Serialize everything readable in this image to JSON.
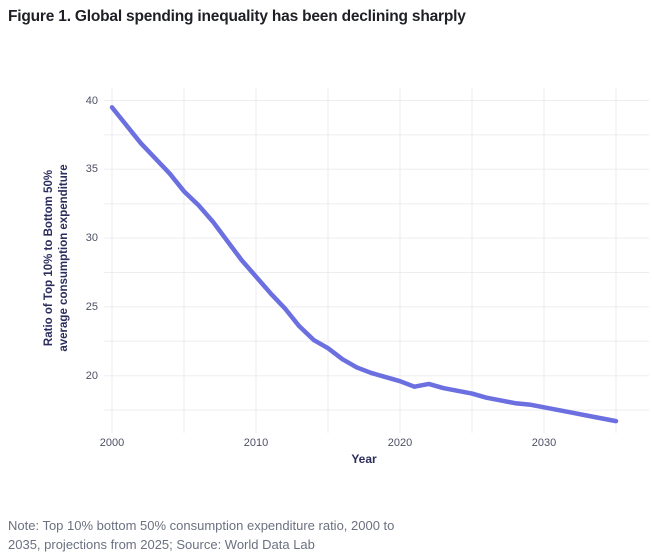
{
  "title": "Figure 1. Global spending inequality has been declining sharply",
  "note": {
    "lines": [
      "Note: Top 10% bottom 50% consumption expenditure ratio, 2000 to",
      "2035, projections from 2025; Source: World Data Lab"
    ]
  },
  "colors": {
    "line": "#6b6fe0",
    "grid": "#ededf1",
    "axis_text": "#4d5064",
    "axis_title": "#2b2e5c",
    "title_text": "#1e2025",
    "note_text": "#6b7180",
    "background": "#ffffff"
  },
  "chart_data": {
    "type": "line",
    "title": "",
    "xlabel": "Year",
    "ylabel_line1": "Ratio of Top 10% to Bottom 50%",
    "ylabel_line2": "average consumption expenditure",
    "x": [
      2000,
      2001,
      2002,
      2003,
      2004,
      2005,
      2006,
      2007,
      2008,
      2009,
      2010,
      2011,
      2012,
      2013,
      2014,
      2015,
      2016,
      2017,
      2018,
      2019,
      2020,
      2021,
      2022,
      2023,
      2024,
      2025,
      2026,
      2027,
      2028,
      2029,
      2030,
      2031,
      2032,
      2033,
      2034,
      2035
    ],
    "y": [
      39.5,
      38.2,
      36.9,
      35.8,
      34.7,
      33.4,
      32.4,
      31.2,
      29.8,
      28.4,
      27.2,
      26.0,
      24.9,
      23.6,
      22.6,
      22.0,
      21.2,
      20.6,
      20.2,
      19.9,
      19.6,
      19.2,
      19.4,
      19.1,
      18.9,
      18.7,
      18.4,
      18.2,
      18.0,
      17.9,
      17.7,
      17.5,
      17.3,
      17.1,
      16.9,
      16.7
    ],
    "x_ticks": [
      2000,
      2010,
      2020,
      2030
    ],
    "y_ticks": [
      40,
      35,
      30,
      25,
      20
    ],
    "x_grid": [
      2000,
      2005,
      2010,
      2015,
      2020,
      2025,
      2030,
      2035
    ],
    "y_grid": [
      17.5,
      20,
      22.5,
      25,
      27.5,
      30,
      32.5,
      35,
      37.5,
      40
    ],
    "xlim": [
      2000,
      2035
    ],
    "ylim": [
      16.5,
      40.9
    ],
    "grid": "on",
    "legend": "none"
  }
}
